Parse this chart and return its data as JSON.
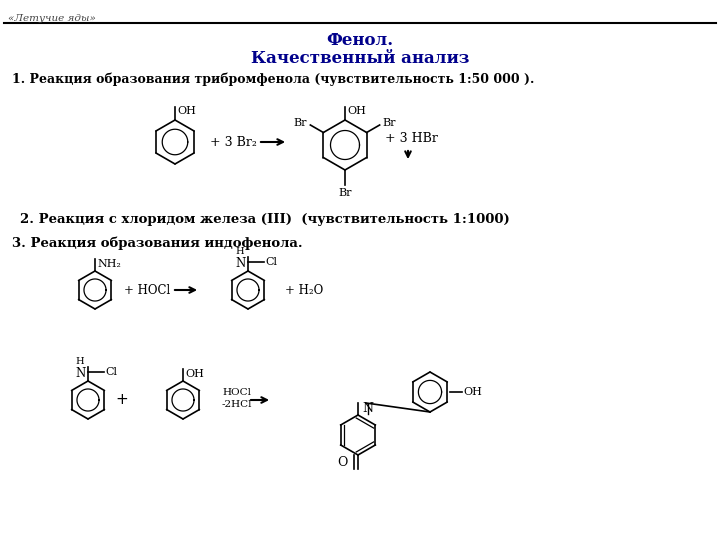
{
  "header_text": "«Летучие яды»",
  "title1": "Фенол.",
  "title2": "Качественный анализ",
  "reaction1": "1. Реакция образования трибромфенола (чувствительность 1:50 000 ).",
  "reaction2": "2. Реакция с хлоридом железа (III)  (чувствительность 1:1000)",
  "reaction3": "3. Реакция образования индофенола.",
  "bg_color": "#ffffff",
  "text_color": "#000000",
  "title_color": "#00008B",
  "header_color": "#444444"
}
